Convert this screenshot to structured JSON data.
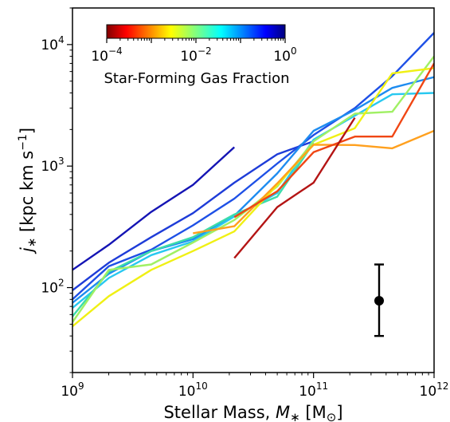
{
  "chart_data": {
    "type": "line",
    "xlabel": "Stellar Mass, M∗ [M⊙]",
    "ylabel": "j∗ [kpc km s⁻¹]",
    "xscale": "log",
    "yscale": "log",
    "xlim": [
      1000000000.0,
      1000000000000.0
    ],
    "ylim": [
      20,
      20000
    ],
    "x_ticks": [
      {
        "value": 1000000000.0,
        "base": "10",
        "exp": "9"
      },
      {
        "value": 10000000000.0,
        "base": "10",
        "exp": "10"
      },
      {
        "value": 100000000000.0,
        "base": "10",
        "exp": "11"
      },
      {
        "value": 1000000000000.0,
        "base": "10",
        "exp": "12"
      }
    ],
    "y_ticks": [
      {
        "value": 100,
        "base": "10",
        "exp": "2"
      },
      {
        "value": 1000,
        "base": "10",
        "exp": "3"
      },
      {
        "value": 10000,
        "base": "10",
        "exp": "4"
      }
    ],
    "colorbar": {
      "title": "Star-Forming Gas Fraction",
      "scale": "log",
      "range": [
        0.0001,
        1
      ],
      "colormap": "jet",
      "placement": "top-left",
      "ticks": [
        {
          "value": 0.0001,
          "base": "10",
          "exp": "−4"
        },
        {
          "value": 0.01,
          "base": "10",
          "exp": "−2"
        },
        {
          "value": 1,
          "base": "10",
          "exp": "0"
        }
      ]
    },
    "series": [
      {
        "color": "#1414b4",
        "points": [
          [
            1000000000.0,
            140
          ],
          [
            2000000000.0,
            225
          ],
          [
            4500000000.0,
            420
          ],
          [
            10000000000.0,
            700
          ],
          [
            22000000000.0,
            1430
          ]
        ]
      },
      {
        "color": "#1e3cd8",
        "points": [
          [
            1000000000.0,
            95
          ],
          [
            2000000000.0,
            160
          ],
          [
            4500000000.0,
            260
          ],
          [
            10000000000.0,
            410
          ],
          [
            22000000000.0,
            730
          ],
          [
            50000000000.0,
            1250
          ],
          [
            100000000000.0,
            1600
          ]
        ]
      },
      {
        "color": "#1e50e6",
        "points": [
          [
            1000000000.0,
            80
          ],
          [
            2000000000.0,
            150
          ],
          [
            4500000000.0,
            205
          ],
          [
            10000000000.0,
            325
          ],
          [
            22000000000.0,
            540
          ],
          [
            50000000000.0,
            1050
          ],
          [
            100000000000.0,
            1800
          ],
          [
            220000000000.0,
            3000
          ],
          [
            450000000000.0,
            5500
          ],
          [
            1000000000000.0,
            12500
          ]
        ]
      },
      {
        "color": "#1e8cf0",
        "points": [
          [
            1000000000.0,
            75
          ],
          [
            2000000000.0,
            130
          ],
          [
            4500000000.0,
            200
          ],
          [
            10000000000.0,
            250
          ],
          [
            22000000000.0,
            390
          ],
          [
            50000000000.0,
            870
          ],
          [
            100000000000.0,
            1950
          ],
          [
            220000000000.0,
            2900
          ],
          [
            450000000000.0,
            4400
          ],
          [
            1000000000000.0,
            5400
          ]
        ]
      },
      {
        "color": "#28c8f0",
        "points": [
          [
            1000000000.0,
            68
          ],
          [
            2000000000.0,
            120
          ],
          [
            4500000000.0,
            185
          ],
          [
            10000000000.0,
            240
          ],
          [
            22000000000.0,
            385
          ],
          [
            50000000000.0,
            600
          ],
          [
            100000000000.0,
            1650
          ],
          [
            220000000000.0,
            2600
          ],
          [
            450000000000.0,
            3900
          ],
          [
            1000000000000.0,
            4000
          ]
        ]
      },
      {
        "color": "#3cdcaa",
        "points": [
          [
            1000000000.0,
            58
          ],
          [
            2000000000.0,
            135
          ],
          [
            4500000000.0,
            200
          ],
          [
            10000000000.0,
            260
          ],
          [
            22000000000.0,
            400
          ],
          [
            50000000000.0,
            560
          ],
          [
            100000000000.0,
            1550
          ]
        ]
      },
      {
        "color": "#a0f064",
        "points": [
          [
            1000000000.0,
            52
          ],
          [
            2000000000.0,
            140
          ],
          [
            4500000000.0,
            155
          ],
          [
            10000000000.0,
            235
          ],
          [
            22000000000.0,
            360
          ],
          [
            50000000000.0,
            680
          ],
          [
            100000000000.0,
            1600
          ],
          [
            220000000000.0,
            2700
          ],
          [
            450000000000.0,
            2800
          ],
          [
            1000000000000.0,
            8000
          ]
        ]
      },
      {
        "color": "#f0f014",
        "points": [
          [
            1000000000.0,
            48
          ],
          [
            2000000000.0,
            85
          ],
          [
            4500000000.0,
            140
          ],
          [
            10000000000.0,
            200
          ],
          [
            22000000000.0,
            290
          ],
          [
            50000000000.0,
            700
          ],
          [
            100000000000.0,
            1500
          ],
          [
            220000000000.0,
            2050
          ],
          [
            450000000000.0,
            5800
          ],
          [
            1000000000000.0,
            6400
          ]
        ]
      },
      {
        "color": "#ffa01e",
        "points": [
          [
            10000000000.0,
            280
          ],
          [
            22000000000.0,
            320
          ],
          [
            50000000000.0,
            720
          ],
          [
            100000000000.0,
            1500
          ],
          [
            220000000000.0,
            1490
          ],
          [
            450000000000.0,
            1400
          ],
          [
            1000000000000.0,
            1950
          ]
        ]
      },
      {
        "color": "#f04614",
        "points": [
          [
            22000000000.0,
            380
          ],
          [
            50000000000.0,
            620
          ],
          [
            100000000000.0,
            1300
          ],
          [
            220000000000.0,
            1750
          ],
          [
            450000000000.0,
            1750
          ],
          [
            1000000000000.0,
            7000
          ]
        ]
      },
      {
        "color": "#b41414",
        "points": [
          [
            22000000000.0,
            175
          ],
          [
            50000000000.0,
            460
          ],
          [
            100000000000.0,
            730
          ],
          [
            220000000000.0,
            2500
          ]
        ]
      }
    ],
    "error_bar": {
      "x": 350000000000.0,
      "y": 78,
      "ylow": 40,
      "yhigh": 155
    }
  }
}
